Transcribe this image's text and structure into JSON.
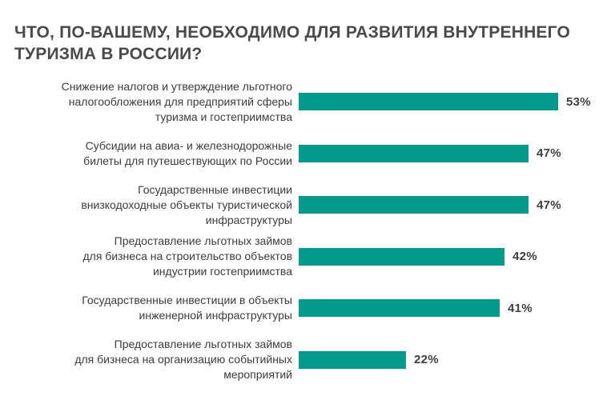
{
  "title_lines": [
    "ЧТО, ПО-ВАШЕМУ, НЕОБХОДИМО ДЛЯ РАЗВИТИЯ ВНУТРЕННЕГО",
    "ТУРИЗМА В РОССИИ?"
  ],
  "colors": {
    "bar": "#009B8C",
    "title_text": "#4A4A4A",
    "label_text": "#3C3C3C",
    "value_text": "#3E3F3F",
    "background": "#FFFFFF"
  },
  "chart_data": {
    "type": "bar",
    "orientation": "horizontal",
    "title": "ЧТО, ПО-ВАШЕМУ, НЕОБХОДИМО ДЛЯ РАЗВИТИЯ ВНУТРЕННЕГО ТУРИЗМА В РОССИИ?",
    "unit": "%",
    "xlim": [
      0,
      60
    ],
    "grid": false,
    "legend": false,
    "categories": [
      "Снижение налогов и утверждение льготного налогообложения для предприятий сферы туризма и гостеприимства",
      "Субсидии на авиа- и железнодорожные билеты для путешествующих по России",
      "Государственные инвестиции внизкодоходные объекты туристической инфраструктуры",
      "Предоставление льготных займов для бизнеса на строительство объектов индустрии гостеприимства",
      "Государственные инвестиции в объекты инженерной инфраструктуры",
      "Предоставление льготных займов для бизнеса на организацию событийных мероприятий"
    ],
    "category_lines": [
      [
        "Снижение налогов и утверждение льготного",
        "налогообложения для предприятий сферы",
        "туризма и гостеприимства"
      ],
      [
        "Субсидии на авиа- и железнодорожные",
        "билеты для путешествующих по России"
      ],
      [
        "Государственные инвестиции",
        "внизкодоходные объекты туристической",
        "инфраструктуры"
      ],
      [
        "Предоставление льготных займов",
        "для бизнеса на строительство объектов",
        "индустрии гостеприимства"
      ],
      [
        "Государственные инвестиции в объекты",
        "инженерной инфраструктуры"
      ],
      [
        "Предоставление льготных займов",
        "для бизнеса на организацию событийных",
        "мероприятий"
      ]
    ],
    "values": [
      53,
      47,
      47,
      42,
      41,
      22
    ],
    "value_labels": [
      "53%",
      "47%",
      "47%",
      "42%",
      "41%",
      "22%"
    ]
  }
}
